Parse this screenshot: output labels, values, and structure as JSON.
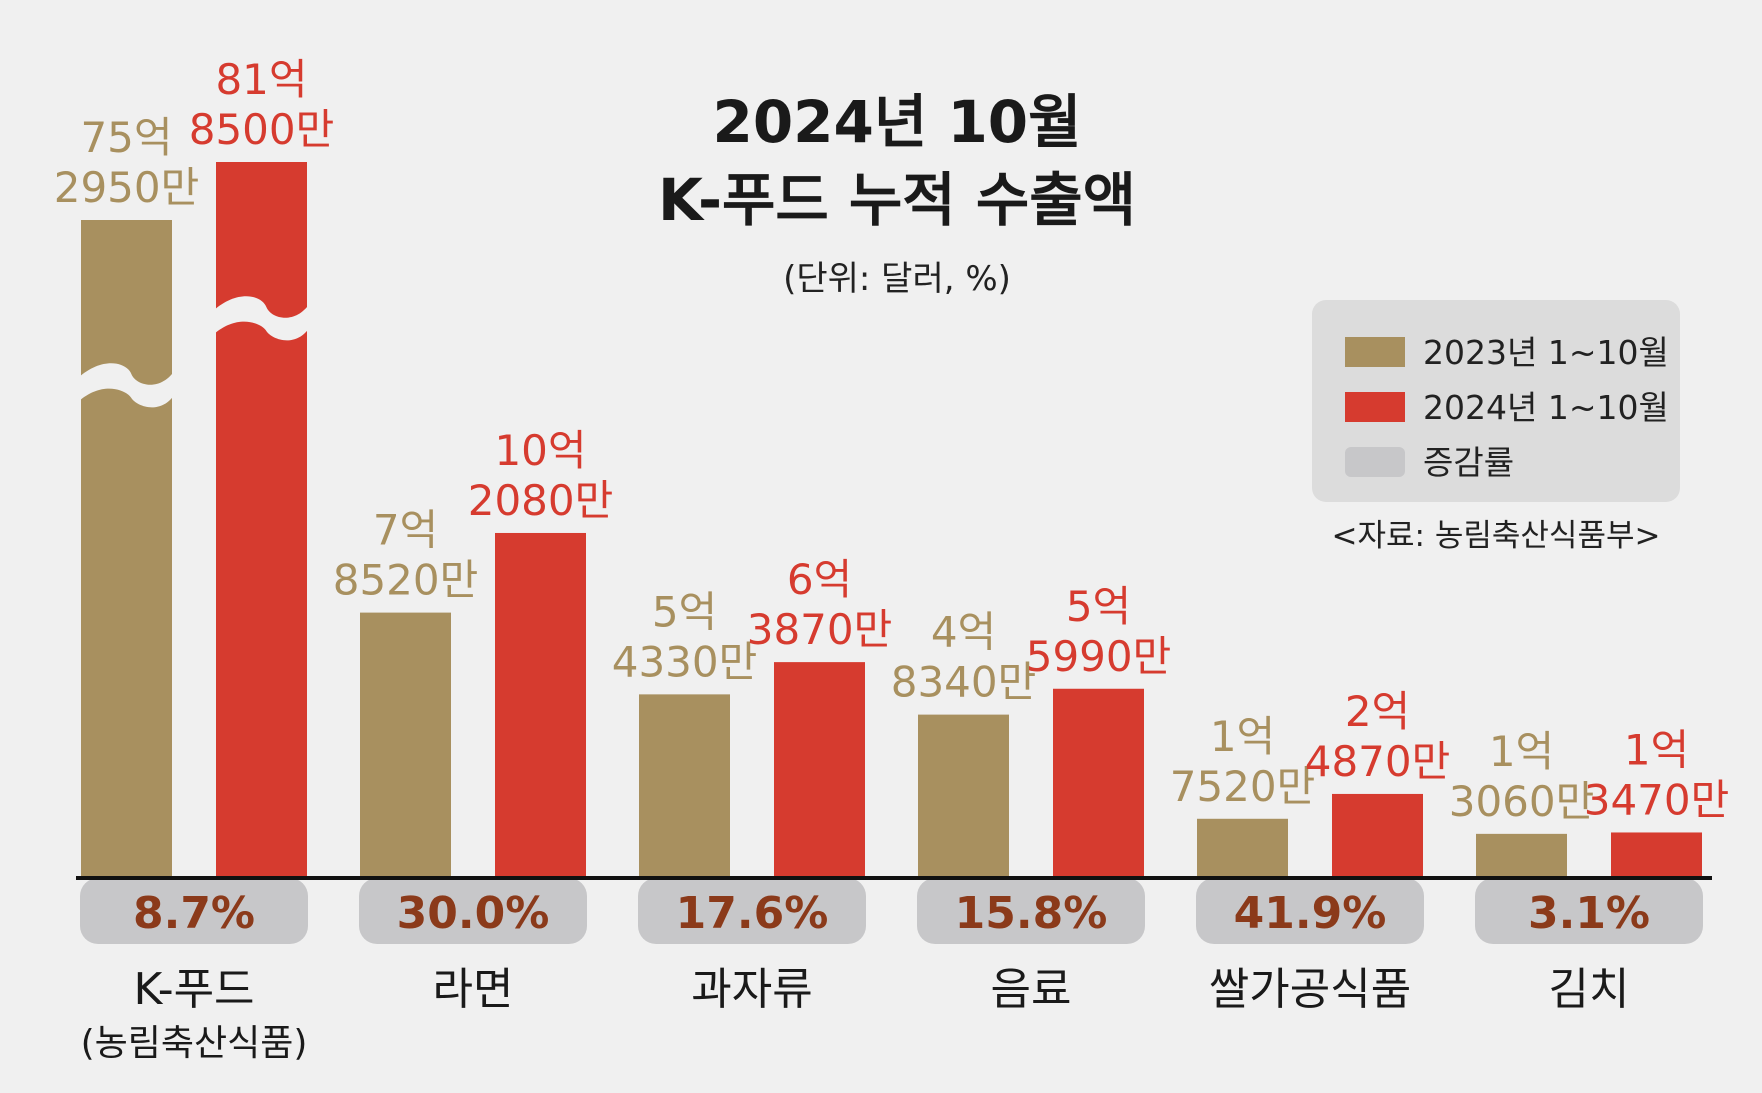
{
  "chart_data": {
    "type": "bar",
    "title_line1": "2024년 10월",
    "title_line2": "K-푸드 누적 수출액",
    "unit": "(단위: 달러, %)",
    "source": "<자료: 농림축산식품부>",
    "legend": [
      {
        "label": "2023년 1~10월",
        "color": "#a8905f"
      },
      {
        "label": "2024년 1~10월",
        "color": "#d63b2f"
      },
      {
        "label": "증감률",
        "color": "#c7c7c9"
      }
    ],
    "categories": [
      {
        "line1": "K-푸드",
        "line2": "(농림축산식품)"
      },
      {
        "line1": "라면",
        "line2": ""
      },
      {
        "line1": "과자류",
        "line2": ""
      },
      {
        "line1": "음료",
        "line2": ""
      },
      {
        "line1": "쌀가공식품",
        "line2": ""
      },
      {
        "line1": "김치",
        "line2": ""
      }
    ],
    "series": [
      {
        "name": "2023년 1~10월",
        "values": [
          7529500000,
          785200000,
          543300000,
          483400000,
          175200000,
          130600000
        ],
        "labels": [
          [
            "75억",
            "2950만"
          ],
          [
            "7억",
            "8520만"
          ],
          [
            "5억",
            "4330만"
          ],
          [
            "4억",
            "8340만"
          ],
          [
            "1억",
            "7520만"
          ],
          [
            "1억",
            "3060만"
          ]
        ]
      },
      {
        "name": "2024년 1~10월",
        "values": [
          8185000000,
          1020800000,
          638700000,
          559900000,
          248700000,
          134700000
        ],
        "labels": [
          [
            "81억",
            "8500만"
          ],
          [
            "10억",
            "2080만"
          ],
          [
            "6억",
            "3870만"
          ],
          [
            "5억",
            "5990만"
          ],
          [
            "2억",
            "4870만"
          ],
          [
            "1억",
            "3470만"
          ]
        ]
      }
    ],
    "growth_rates": [
      "8.7%",
      "30.0%",
      "17.6%",
      "15.8%",
      "41.9%",
      "3.1%"
    ],
    "axis_broken_for_first_category": true
  }
}
